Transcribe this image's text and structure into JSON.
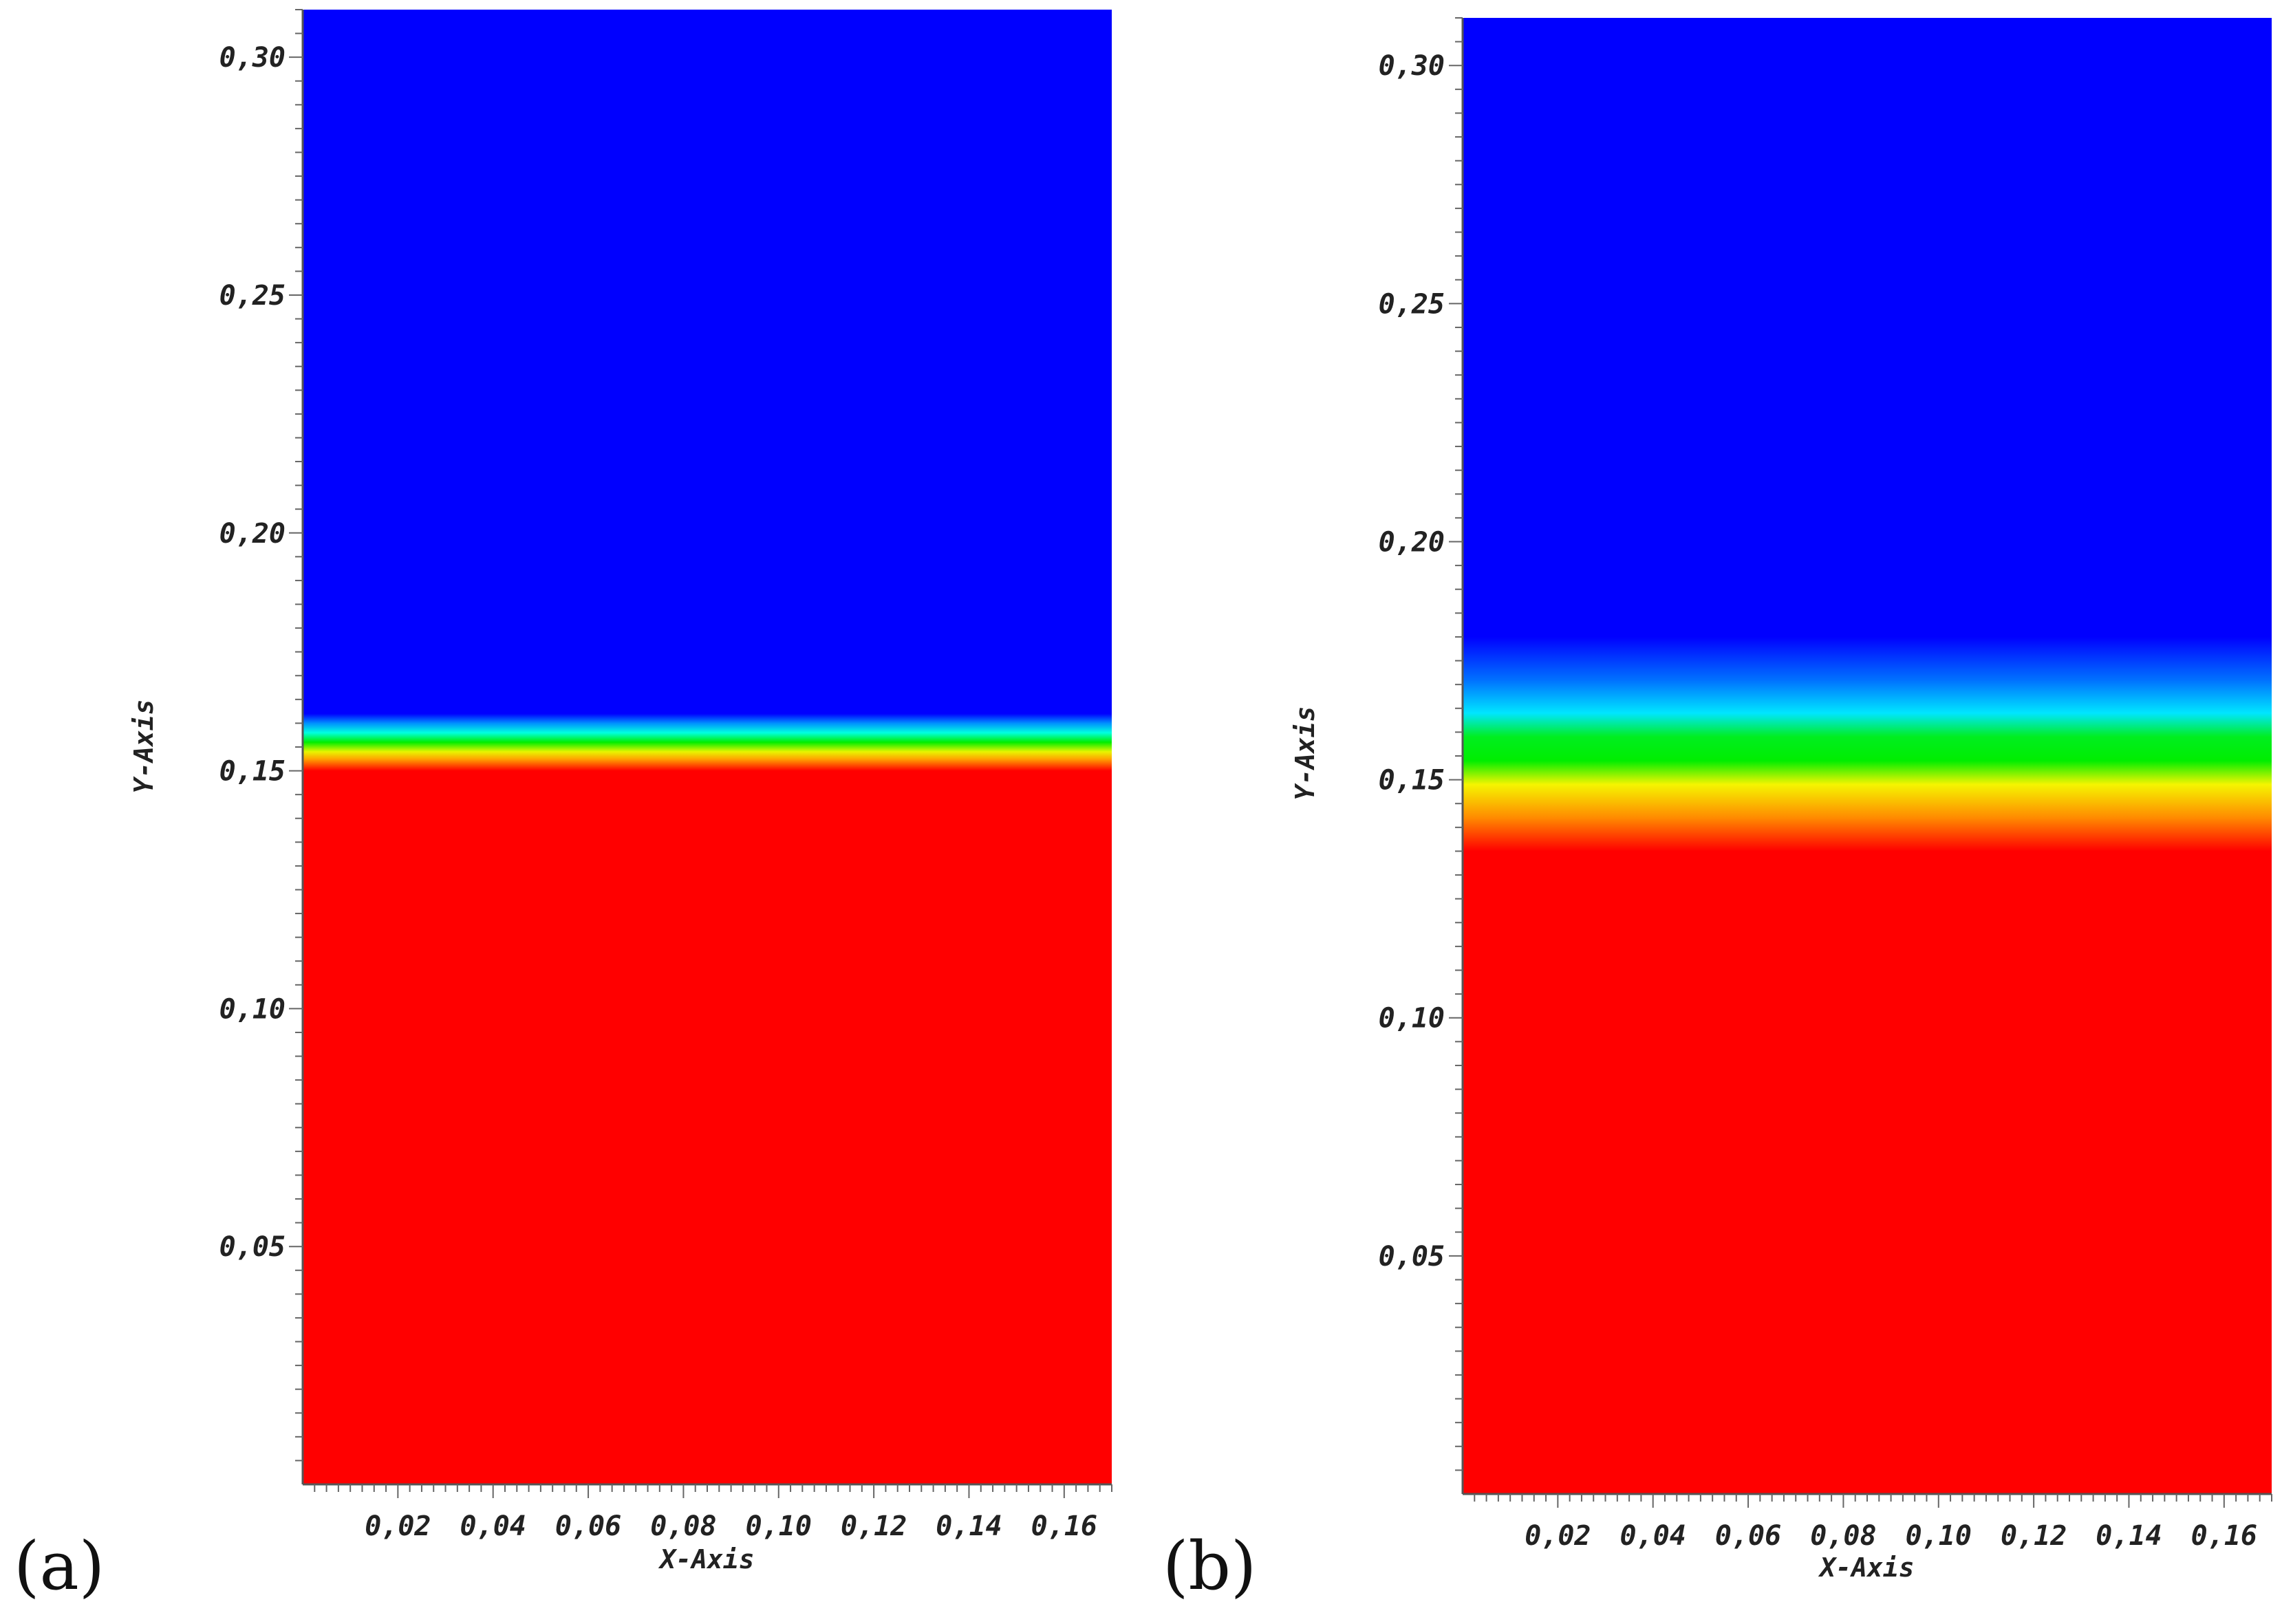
{
  "chart_data": [
    {
      "type": "heatmap",
      "panel_label": "(a)",
      "xlabel": "X-Axis",
      "ylabel": "Y-Axis",
      "xlim": [
        0,
        0.17
      ],
      "ylim": [
        0,
        0.31
      ],
      "x_ticks": [
        "0,02",
        "0,04",
        "0,06",
        "0,08",
        "0,10",
        "0,12",
        "0,14",
        "0,16"
      ],
      "x_tick_values": [
        0.02,
        0.04,
        0.06,
        0.08,
        0.1,
        0.12,
        0.14,
        0.16
      ],
      "y_ticks": [
        "0,05",
        "0,10",
        "0,15",
        "0,20",
        "0,25",
        "0,30"
      ],
      "y_tick_values": [
        0.05,
        0.1,
        0.15,
        0.2,
        0.25,
        0.3
      ],
      "color_profile": [
        {
          "y": 0.0,
          "color": "#ff0000"
        },
        {
          "y": 0.15,
          "color": "#ff0000"
        },
        {
          "y": 0.1525,
          "color": "#ffa500"
        },
        {
          "y": 0.154,
          "color": "#e8f500"
        },
        {
          "y": 0.156,
          "color": "#00ee00"
        },
        {
          "y": 0.158,
          "color": "#00ffe0"
        },
        {
          "y": 0.16,
          "color": "#0090ff"
        },
        {
          "y": 0.162,
          "color": "#0000ff"
        },
        {
          "y": 0.31,
          "color": "#0000ff"
        }
      ]
    },
    {
      "type": "heatmap",
      "panel_label": "(b)",
      "xlabel": "X-Axis",
      "ylabel": "Y-Axis",
      "xlim": [
        0,
        0.17
      ],
      "ylim": [
        0,
        0.31
      ],
      "x_ticks": [
        "0,02",
        "0,04",
        "0,06",
        "0,08",
        "0,10",
        "0,12",
        "0,14",
        "0,16"
      ],
      "x_tick_values": [
        0.02,
        0.04,
        0.06,
        0.08,
        0.1,
        0.12,
        0.14,
        0.16
      ],
      "y_ticks": [
        "0,05",
        "0,10",
        "0,15",
        "0,20",
        "0,25",
        "0,30"
      ],
      "y_tick_values": [
        0.05,
        0.1,
        0.15,
        0.2,
        0.25,
        0.3
      ],
      "color_profile": [
        {
          "y": 0.0,
          "color": "#ff0000"
        },
        {
          "y": 0.135,
          "color": "#ff0000"
        },
        {
          "y": 0.142,
          "color": "#ff8a00"
        },
        {
          "y": 0.149,
          "color": "#f5f500"
        },
        {
          "y": 0.154,
          "color": "#00ee00"
        },
        {
          "y": 0.159,
          "color": "#00ee20"
        },
        {
          "y": 0.164,
          "color": "#00e6ff"
        },
        {
          "y": 0.171,
          "color": "#0070ff"
        },
        {
          "y": 0.18,
          "color": "#0000ff"
        },
        {
          "y": 0.31,
          "color": "#0000ff"
        }
      ]
    }
  ]
}
